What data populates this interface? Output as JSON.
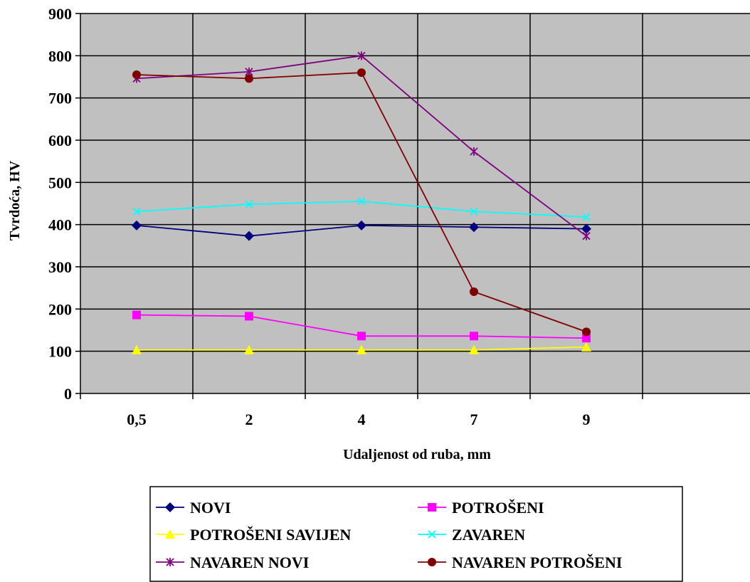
{
  "chart_data": {
    "type": "line",
    "categories": [
      "0,5",
      "2",
      "4",
      "7",
      "9"
    ],
    "ylim": [
      0,
      900
    ],
    "yticks": [
      0,
      100,
      200,
      300,
      400,
      500,
      600,
      700,
      800,
      900
    ],
    "xlabel": "Udaljenost od ruba, mm",
    "ylabel": "Tvrdoća, HV",
    "grid": true,
    "legend_position": "bottom",
    "plot_background": "#c0c0c0",
    "series": [
      {
        "name": "NOVI",
        "values": [
          398,
          373,
          398,
          394,
          390
        ],
        "color": "#000080",
        "marker": "diamond"
      },
      {
        "name": "POTROŠENI",
        "values": [
          186,
          183,
          136,
          136,
          131
        ],
        "color": "#ff00ff",
        "marker": "square"
      },
      {
        "name": "POTROŠENI SAVIJEN",
        "values": [
          103,
          103,
          103,
          103,
          110
        ],
        "color": "#ffff00",
        "marker": "triangle"
      },
      {
        "name": "ZAVAREN",
        "values": [
          431,
          448,
          455,
          431,
          418
        ],
        "color": "#00ffff",
        "marker": "x"
      },
      {
        "name": "NAVAREN NOVI",
        "values": [
          746,
          762,
          800,
          573,
          373
        ],
        "color": "#800080",
        "marker": "star"
      },
      {
        "name": "NAVAREN POTROŠENI",
        "values": [
          755,
          746,
          760,
          241,
          146
        ],
        "color": "#800000",
        "marker": "circle"
      }
    ]
  }
}
